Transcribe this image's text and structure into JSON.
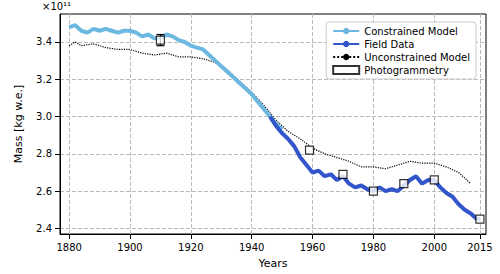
{
  "chart_data": {
    "type": "line",
    "x_label": "Years",
    "y_label": "Mass [kg w.e.]",
    "annotations": [
      "×10¹¹"
    ],
    "xlim": [
      1877,
      2017
    ],
    "xticks": [
      1880,
      1900,
      1920,
      1940,
      1960,
      1980,
      2000,
      2015
    ],
    "ylim": [
      2.37,
      3.55
    ],
    "yticks": [
      2.4,
      2.6,
      2.8,
      {
        "value": 3.0,
        "label": "3.0"
      },
      3.2,
      3.4
    ],
    "grid": true,
    "legend": "upper right",
    "series": [
      {
        "name": "Constrained Model",
        "type": "line",
        "color": "#6cb8e0",
        "line_style": "solid",
        "x": [
          1880,
          1882,
          1884,
          1886,
          1888,
          1890,
          1892,
          1894,
          1896,
          1898,
          1900,
          1902,
          1904,
          1906,
          1908,
          1910,
          1912,
          1914,
          1916,
          1918,
          1920,
          1922,
          1924,
          1926,
          1928,
          1930,
          1932,
          1934,
          1936,
          1938,
          1940,
          1942,
          1944,
          1946,
          1948,
          1950
        ],
        "values": [
          3.48,
          3.49,
          3.46,
          3.45,
          3.47,
          3.46,
          3.47,
          3.46,
          3.45,
          3.46,
          3.46,
          3.45,
          3.43,
          3.44,
          3.42,
          3.42,
          3.44,
          3.43,
          3.41,
          3.4,
          3.38,
          3.37,
          3.36,
          3.33,
          3.3,
          3.27,
          3.24,
          3.21,
          3.18,
          3.15,
          3.12,
          3.08,
          3.04,
          3.0,
          2.96,
          2.93
        ]
      },
      {
        "name": "Field Data",
        "type": "line",
        "color": "#3355cc",
        "line_style": "solid",
        "x": [
          1946,
          1948,
          1950,
          1952,
          1954,
          1956,
          1958,
          1960,
          1962,
          1964,
          1966,
          1968,
          1970,
          1972,
          1974,
          1976,
          1978,
          1980,
          1982,
          1984,
          1986,
          1988,
          1990,
          1992,
          1994,
          1996,
          1998,
          2000,
          2002,
          2004,
          2006,
          2008,
          2010,
          2012,
          2014,
          2015
        ],
        "values": [
          3.0,
          2.95,
          2.91,
          2.88,
          2.84,
          2.78,
          2.74,
          2.7,
          2.71,
          2.68,
          2.69,
          2.66,
          2.68,
          2.64,
          2.62,
          2.63,
          2.61,
          2.6,
          2.62,
          2.6,
          2.61,
          2.6,
          2.63,
          2.66,
          2.68,
          2.64,
          2.66,
          2.66,
          2.62,
          2.59,
          2.57,
          2.53,
          2.5,
          2.48,
          2.45,
          2.45
        ]
      },
      {
        "name": "Unconstrained Model",
        "type": "line",
        "color": "#000000",
        "line_style": "dotted",
        "x": [
          1880,
          1882,
          1884,
          1888,
          1892,
          1896,
          1900,
          1904,
          1908,
          1912,
          1916,
          1920,
          1924,
          1928,
          1932,
          1936,
          1940,
          1944,
          1948,
          1952,
          1956,
          1960,
          1964,
          1968,
          1972,
          1976,
          1980,
          1984,
          1988,
          1992,
          1996,
          2000,
          2004,
          2008,
          2012
        ],
        "values": [
          3.38,
          3.4,
          3.38,
          3.39,
          3.37,
          3.36,
          3.36,
          3.34,
          3.33,
          3.34,
          3.32,
          3.32,
          3.31,
          3.29,
          3.25,
          3.19,
          3.13,
          3.06,
          2.98,
          2.92,
          2.88,
          2.83,
          2.8,
          2.78,
          2.76,
          2.73,
          2.73,
          2.72,
          2.74,
          2.76,
          2.75,
          2.75,
          2.73,
          2.7,
          2.64
        ]
      },
      {
        "name": "Photogrammetry",
        "type": "scatter",
        "color": "#000000",
        "marker": "square",
        "x": [
          1910,
          1959,
          1970,
          1980,
          1990,
          2000,
          2015
        ],
        "values": [
          3.41,
          2.82,
          2.69,
          2.6,
          2.64,
          2.66,
          2.45
        ],
        "errors": [
          0.03,
          null,
          null,
          null,
          null,
          null,
          null
        ]
      }
    ]
  }
}
